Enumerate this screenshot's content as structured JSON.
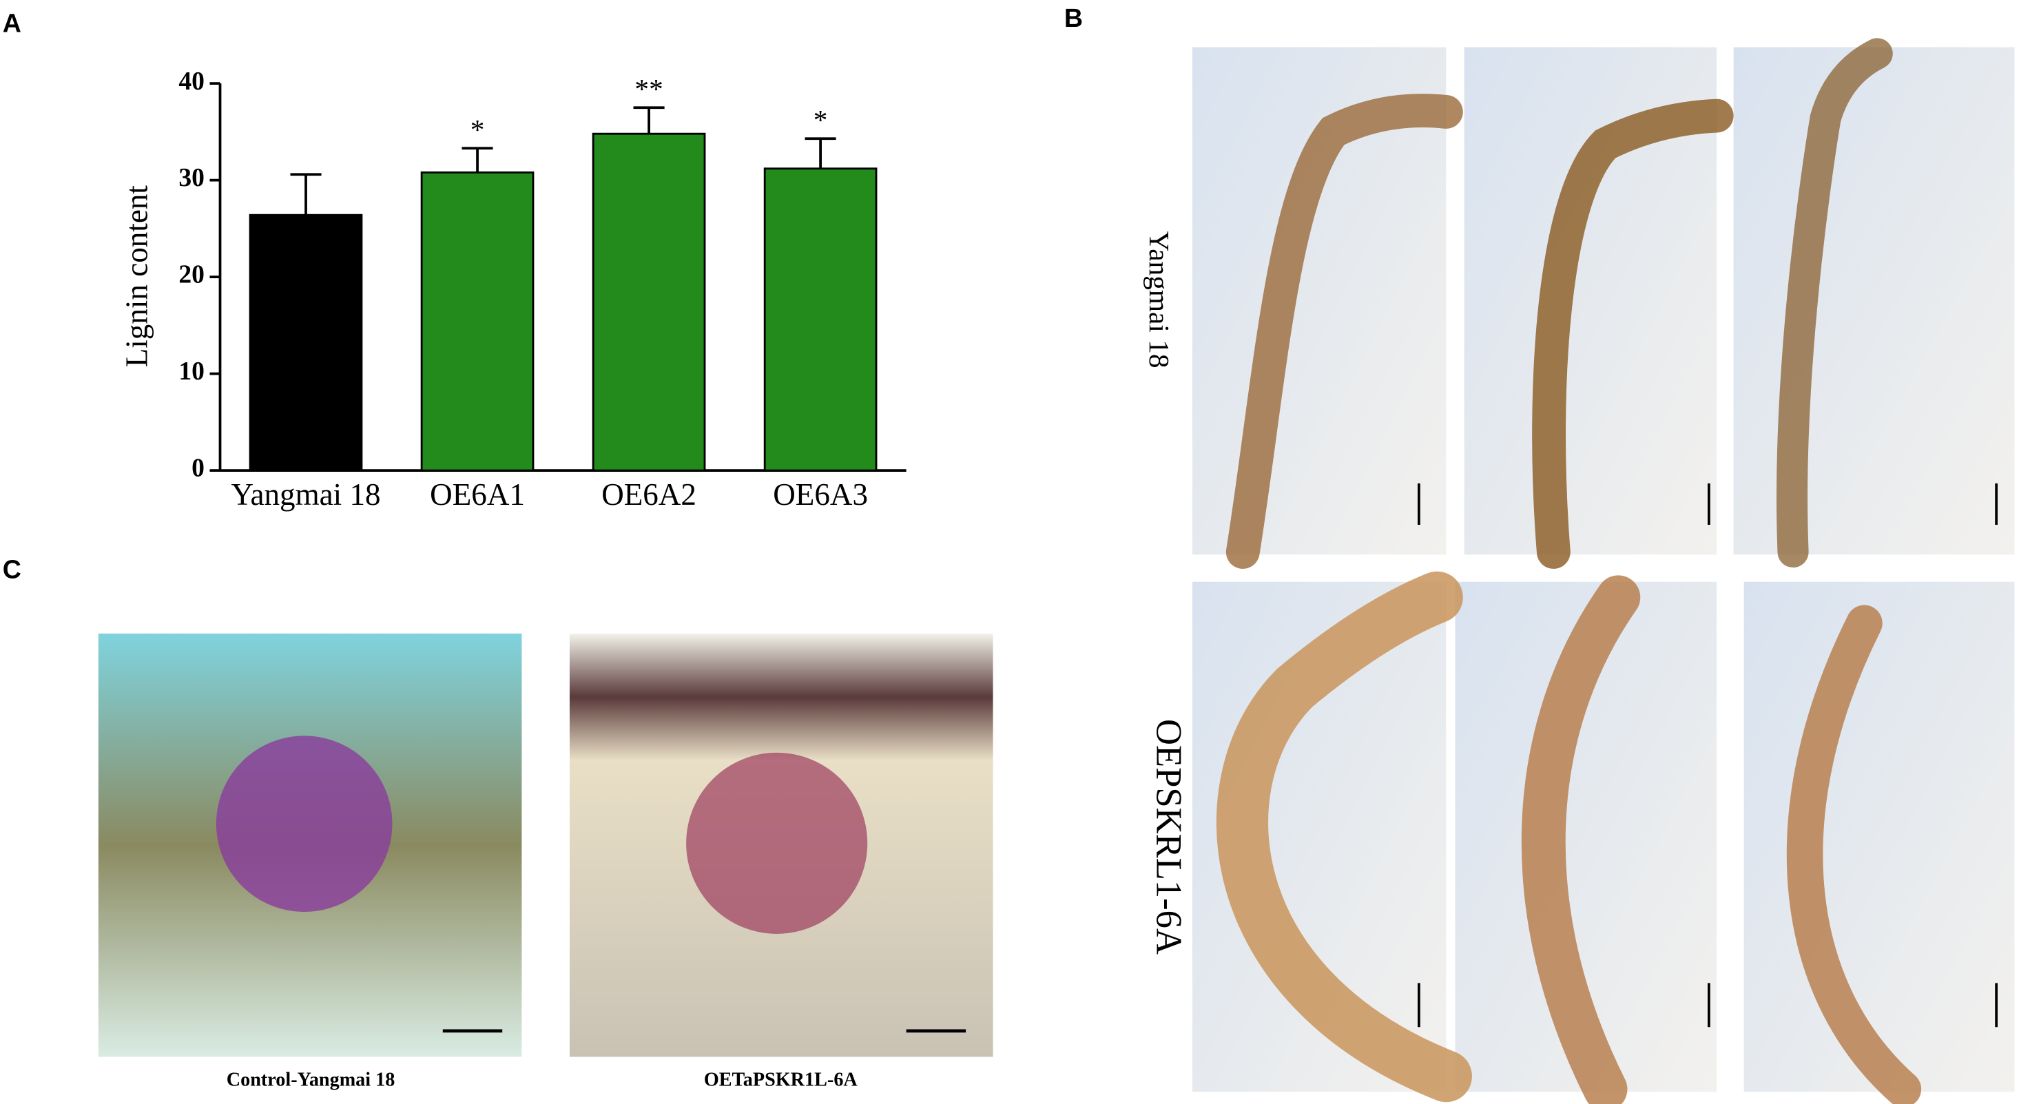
{
  "chart_data": {
    "type": "bar",
    "ylabel": "Lignin content",
    "categories": [
      "Yangmai 18",
      "OE6A1",
      "OE6A2",
      "OE6A3"
    ],
    "values": [
      26.4,
      30.8,
      34.8,
      31.2
    ],
    "errors": [
      4.2,
      2.5,
      2.7,
      3.1
    ],
    "annotations": [
      null,
      "*",
      "**",
      "*"
    ],
    "colors": [
      "#000000",
      "#228b1c",
      "#228b1c",
      "#228b1c"
    ],
    "ylim": [
      0,
      40
    ],
    "yticks": [
      0,
      10,
      20,
      30,
      40
    ],
    "grid": false
  },
  "panel_labels": [
    "A",
    "B",
    "C"
  ],
  "panel_b": {
    "row_labels": [
      "Yangmai 18",
      "OEPSKRL1-6A"
    ]
  },
  "panel_c": {
    "captions": [
      "Control-Yangmai 18",
      "OETaPSKR1L-6A"
    ]
  }
}
